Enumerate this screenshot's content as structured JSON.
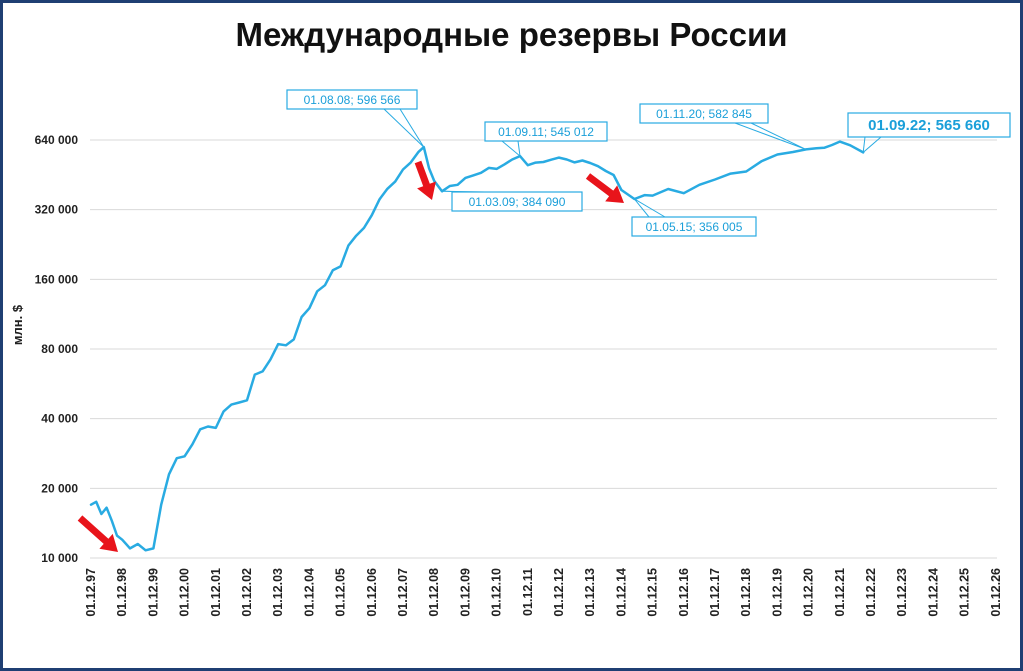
{
  "chart_data": {
    "type": "line",
    "title": "Международные резервы России",
    "ylabel": "млн. $",
    "xlabel": "",
    "y_scale": "log2",
    "ylim": [
      10000,
      800000
    ],
    "y_ticks": [
      10000,
      20000,
      40000,
      80000,
      160000,
      320000,
      640000
    ],
    "y_tick_labels": [
      "10 000",
      "20 000",
      "40 000",
      "80 000",
      "160 000",
      "320 000",
      "640 000"
    ],
    "x_tick_labels": [
      "01.12.97",
      "01.12.98",
      "01.12.99",
      "01.12.00",
      "01.12.01",
      "01.12.02",
      "01.12.03",
      "01.12.04",
      "01.12.05",
      "01.12.06",
      "01.12.07",
      "01.12.08",
      "01.12.09",
      "01.12.10",
      "01.12.11",
      "01.12.12",
      "01.12.13",
      "01.12.14",
      "01.12.15",
      "01.12.16",
      "01.12.17",
      "01.12.18",
      "01.12.19",
      "01.12.20",
      "01.12.21",
      "01.12.22",
      "01.12.23",
      "01.12.24",
      "01.12.25",
      "01.12.26"
    ],
    "grid": true,
    "legend": "none",
    "line_color": "#29abe2",
    "series": [
      {
        "x": [
          "1997-12",
          "1998-02",
          "1998-04",
          "1998-06",
          "1998-08",
          "1998-10",
          "1998-12",
          "1999-03",
          "1999-06",
          "1999-09",
          "1999-12",
          "2000-03",
          "2000-06",
          "2000-09",
          "2000-12",
          "2001-03",
          "2001-06",
          "2001-09",
          "2001-12",
          "2002-03",
          "2002-06",
          "2002-09",
          "2002-12",
          "2003-03",
          "2003-06",
          "2003-09",
          "2003-12",
          "2004-03",
          "2004-06",
          "2004-09",
          "2004-12",
          "2005-03",
          "2005-06",
          "2005-09",
          "2005-12",
          "2006-03",
          "2006-06",
          "2006-09",
          "2006-12",
          "2007-03",
          "2007-06",
          "2007-09",
          "2007-12",
          "2008-03",
          "2008-06",
          "2008-08",
          "2008-10",
          "2008-12",
          "2009-03",
          "2009-06",
          "2009-09",
          "2009-12",
          "2010-03",
          "2010-06",
          "2010-09",
          "2010-12",
          "2011-03",
          "2011-06",
          "2011-09",
          "2011-12",
          "2012-03",
          "2012-06",
          "2012-09",
          "2012-12",
          "2013-03",
          "2013-06",
          "2013-09",
          "2013-12",
          "2014-03",
          "2014-06",
          "2014-09",
          "2014-12",
          "2015-05",
          "2015-09",
          "2015-12",
          "2016-06",
          "2016-12",
          "2017-06",
          "2017-12",
          "2018-06",
          "2018-12",
          "2019-06",
          "2019-12",
          "2020-06",
          "2020-11",
          "2021-03",
          "2021-06",
          "2021-09",
          "2021-12",
          "2022-04",
          "2022-09"
        ],
        "y": [
          17000,
          17500,
          15500,
          16500,
          14500,
          12500,
          12000,
          11000,
          11500,
          10800,
          11000,
          17000,
          23000,
          27000,
          27500,
          31000,
          36000,
          37000,
          36500,
          43000,
          46000,
          47000,
          48000,
          62000,
          64000,
          72000,
          84000,
          83000,
          88000,
          110000,
          120000,
          142000,
          151000,
          175000,
          182000,
          224000,
          247000,
          267000,
          303000,
          355000,
          394000,
          423000,
          477000,
          512000,
          569000,
          596566,
          484000,
          426000,
          384090,
          405000,
          410000,
          439000,
          450000,
          462000,
          485000,
          480000,
          502000,
          527000,
          545012,
          498000,
          511000,
          514000,
          526000,
          537000,
          527000,
          512000,
          522000,
          509000,
          493000,
          470000,
          452000,
          389000,
          356005,
          370000,
          368000,
          393000,
          377000,
          410000,
          432000,
          458000,
          468000,
          519000,
          554000,
          568000,
          582845,
          590000,
          592000,
          609000,
          630000,
          607000,
          565660
        ]
      }
    ],
    "annotations": [
      {
        "label": "01.08.08; 596 566",
        "x": "2008-08",
        "y": 596566
      },
      {
        "label": "01.03.09; 384 090",
        "x": "2009-03",
        "y": 384090
      },
      {
        "label": "01.09.11; 545 012",
        "x": "2011-09",
        "y": 545012
      },
      {
        "label": "01.05.15; 356 005",
        "x": "2015-05",
        "y": 356005
      },
      {
        "label": "01.11.20; 582 845",
        "x": "2020-11",
        "y": 582845
      },
      {
        "label": "01.09.22; 565 660",
        "x": "2022-09",
        "y": 565660
      }
    ],
    "arrows": [
      {
        "color": "#e8141b",
        "at": "1998-08"
      },
      {
        "color": "#e8141b",
        "at": "2009-03"
      },
      {
        "color": "#e8141b",
        "at": "2015-05"
      }
    ]
  }
}
